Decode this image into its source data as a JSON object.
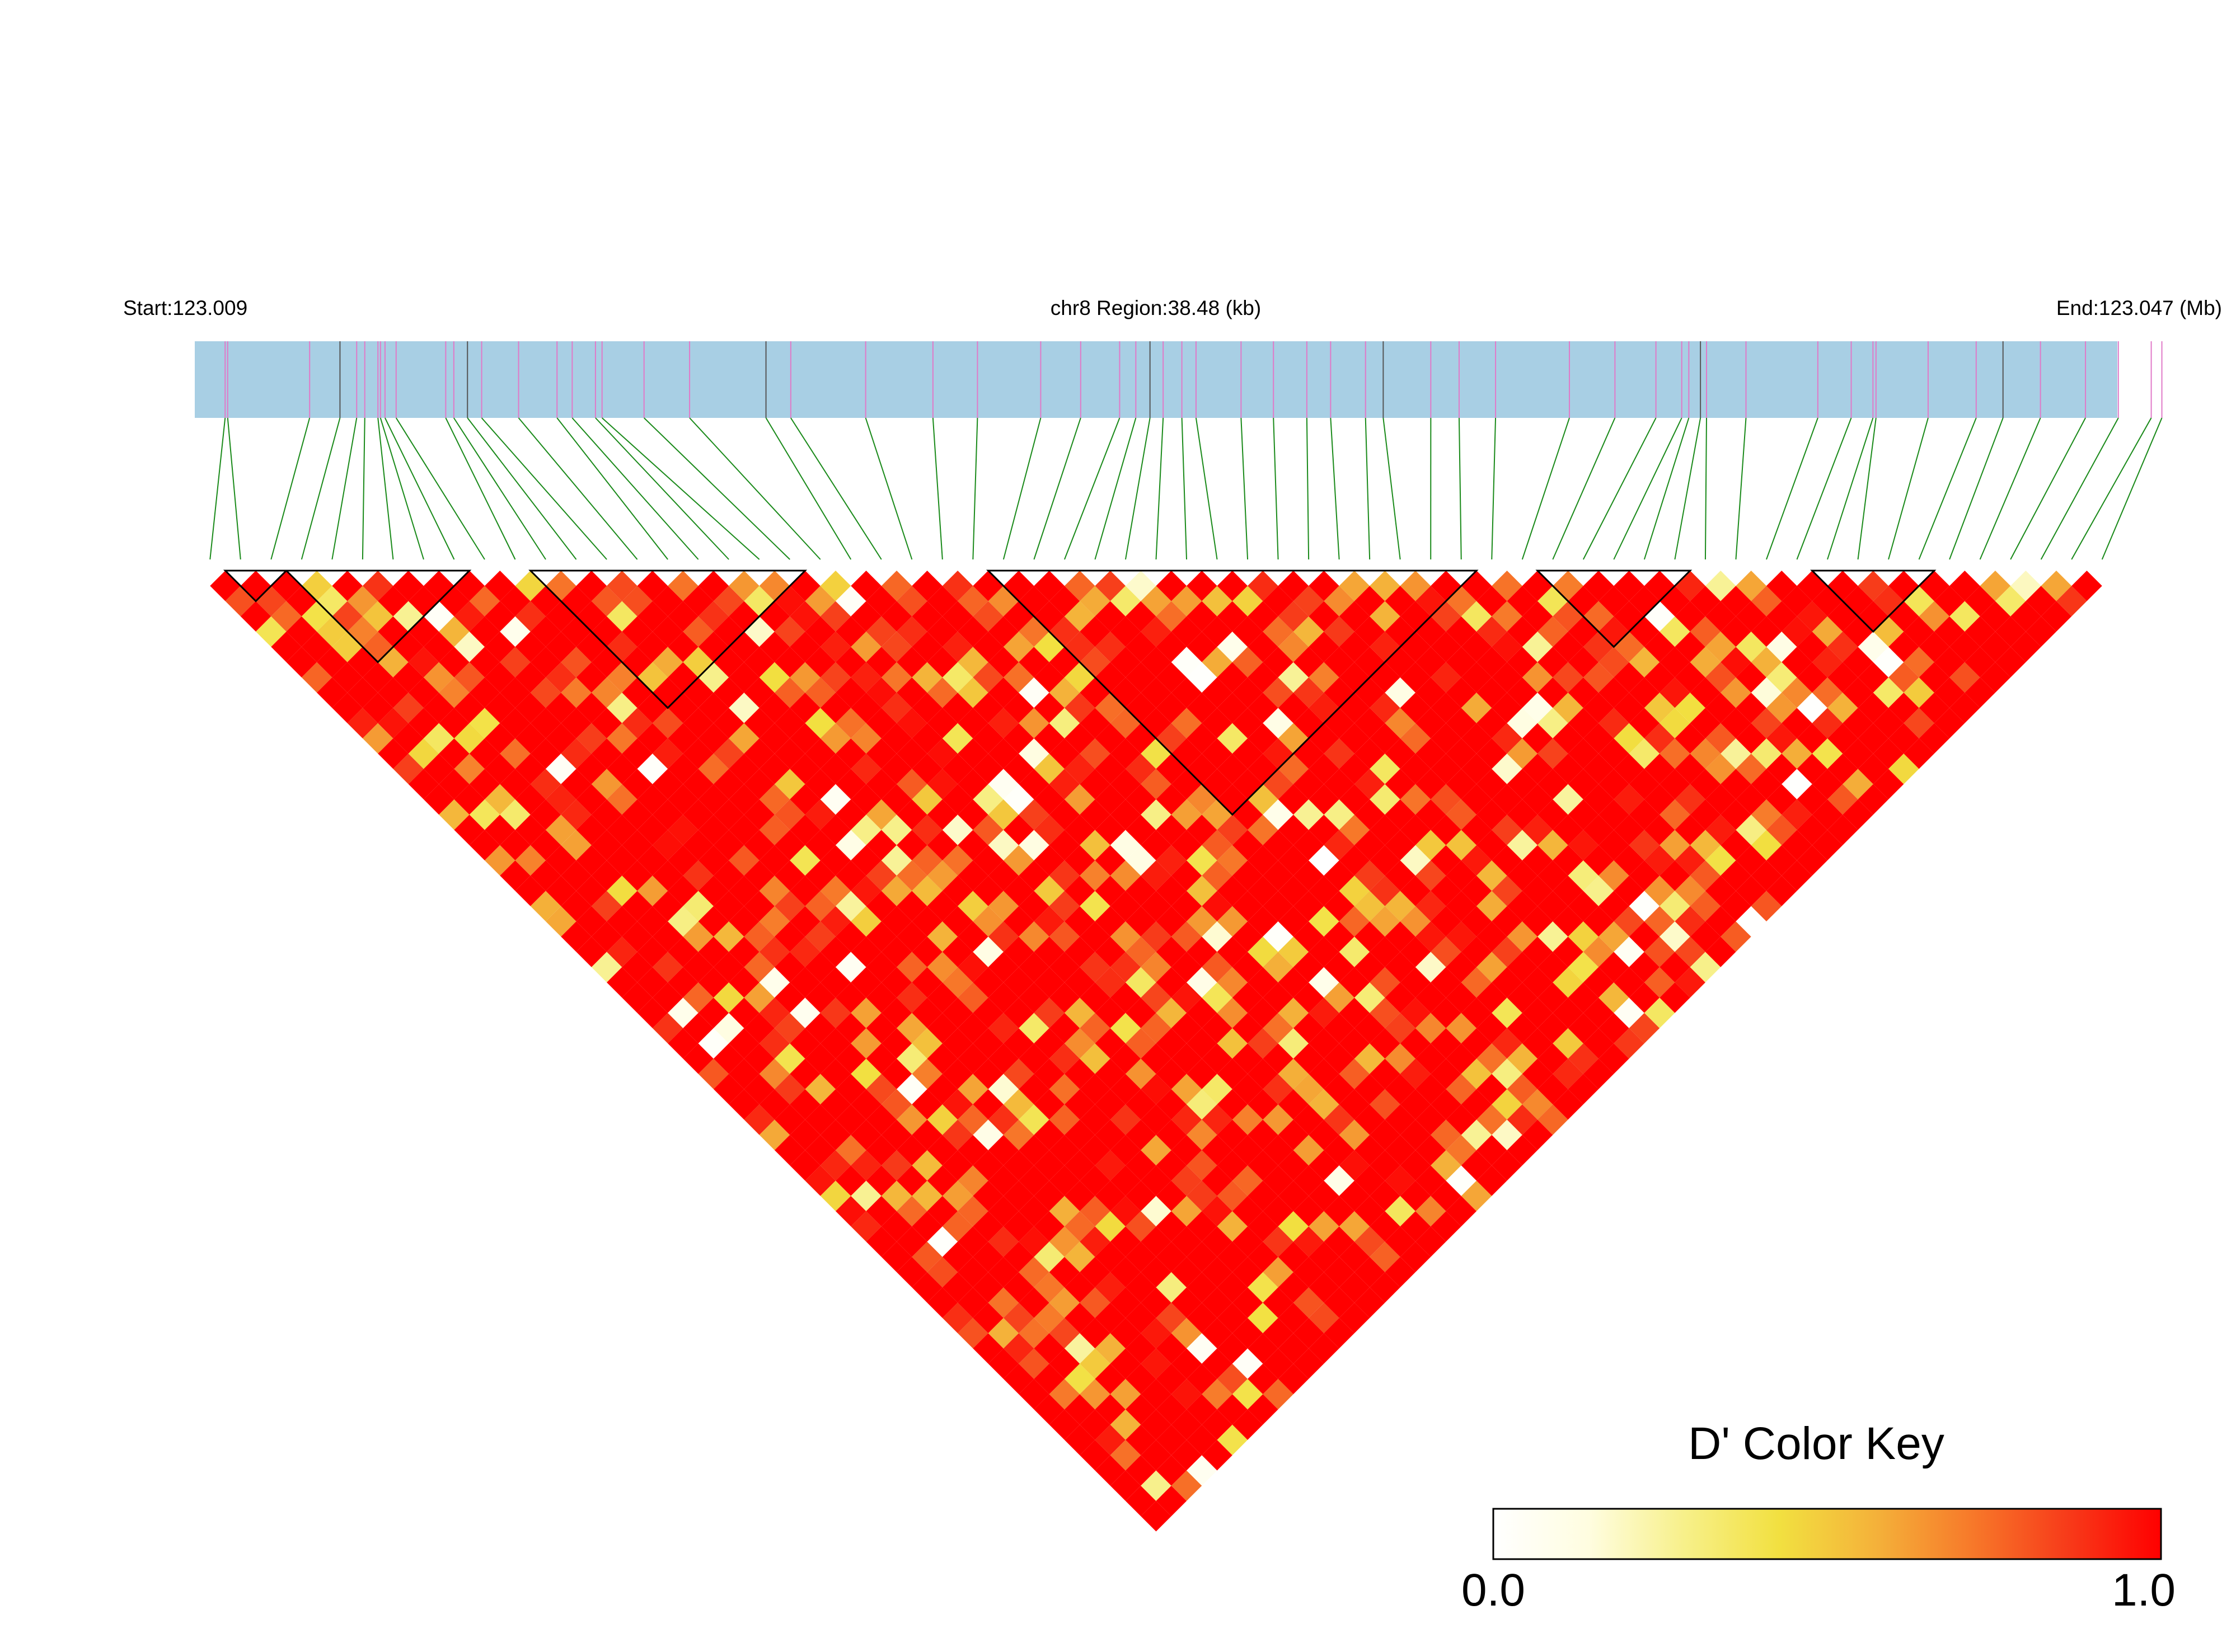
{
  "header": {
    "start_label": "Start:123.009",
    "region_label": "chr8 Region:38.48 (kb)",
    "end_label": "End:123.047 (Mb)"
  },
  "color_key": {
    "title": "D' Color Key",
    "min_label": "0.0",
    "max_label": "1.0",
    "stops": [
      "#ffffff",
      "#fffde0",
      "#f7f08a",
      "#f2e040",
      "#f4b23a",
      "#f77a2a",
      "#f73c1a",
      "#ff0000"
    ]
  },
  "chart_data": {
    "type": "heatmap",
    "description_metric": "D'",
    "chromosome": "chr8",
    "start_mb": 123.009,
    "end_mb": 123.047,
    "region_kb": 38.48,
    "snp_count": 63,
    "color_range": [
      0.0,
      1.0
    ],
    "snp_positions_mb": [
      123.0096,
      123.00965,
      123.01127,
      123.01187,
      123.0122,
      123.01236,
      123.01262,
      123.01267,
      123.01276,
      123.01298,
      123.01396,
      123.01412,
      123.01439,
      123.01467,
      123.0154,
      123.01616,
      123.01646,
      123.01692,
      123.01705,
      123.01788,
      123.01878,
      123.02029,
      123.02078,
      123.02226,
      123.02359,
      123.02447,
      123.02572,
      123.02651,
      123.02728,
      123.0276,
      123.02788,
      123.02814,
      123.02851,
      123.02879,
      123.02968,
      123.03032,
      123.03098,
      123.03145,
      123.03214,
      123.03249,
      123.03343,
      123.03399,
      123.03471,
      123.03617,
      123.03707,
      123.03788,
      123.03839,
      123.03853,
      123.03876,
      123.03888,
      123.03966,
      123.04108,
      123.04174,
      123.04217,
      123.04223,
      123.04326,
      123.04421,
      123.04474,
      123.04548,
      123.04637,
      123.04702,
      123.04767,
      123.04788
    ],
    "seed": 20771,
    "ld_blocks": [
      [
        1,
        2
      ],
      [
        3,
        8
      ],
      [
        11,
        19
      ],
      [
        26,
        41
      ],
      [
        44,
        48
      ],
      [
        53,
        56
      ]
    ],
    "value_summary": "predominantly high D' (near 1.0, red) with scattered lower values (yellow/white)"
  }
}
